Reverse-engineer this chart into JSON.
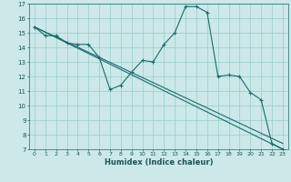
{
  "xlabel": "Humidex (Indice chaleur)",
  "ylabel": "",
  "xlim": [
    -0.5,
    23.5
  ],
  "ylim": [
    7,
    17
  ],
  "background_color": "#cce8e8",
  "grid_color": "#99cccc",
  "line_color": "#1a6b6b",
  "line1_x": [
    0,
    1,
    2,
    3,
    4,
    5,
    6,
    7,
    8,
    9,
    10,
    11,
    12,
    13,
    14,
    15,
    16,
    17,
    18,
    19,
    20,
    21,
    22,
    23
  ],
  "line1_y": [
    15.4,
    14.8,
    14.8,
    14.3,
    14.2,
    14.2,
    13.3,
    11.1,
    11.4,
    12.3,
    13.1,
    13.0,
    14.2,
    15.0,
    16.8,
    16.8,
    16.4,
    12.0,
    12.1,
    12.0,
    10.9,
    10.4,
    7.4,
    7.0
  ],
  "line2_x": [
    0,
    23
  ],
  "line2_y": [
    15.4,
    7.0
  ],
  "line3_x": [
    0,
    23
  ],
  "line3_y": [
    15.4,
    7.4
  ],
  "yticks": [
    7,
    8,
    9,
    10,
    11,
    12,
    13,
    14,
    15,
    16,
    17
  ],
  "xticks": [
    0,
    1,
    2,
    3,
    4,
    5,
    6,
    7,
    8,
    9,
    10,
    11,
    12,
    13,
    14,
    15,
    16,
    17,
    18,
    19,
    20,
    21,
    22,
    23
  ]
}
